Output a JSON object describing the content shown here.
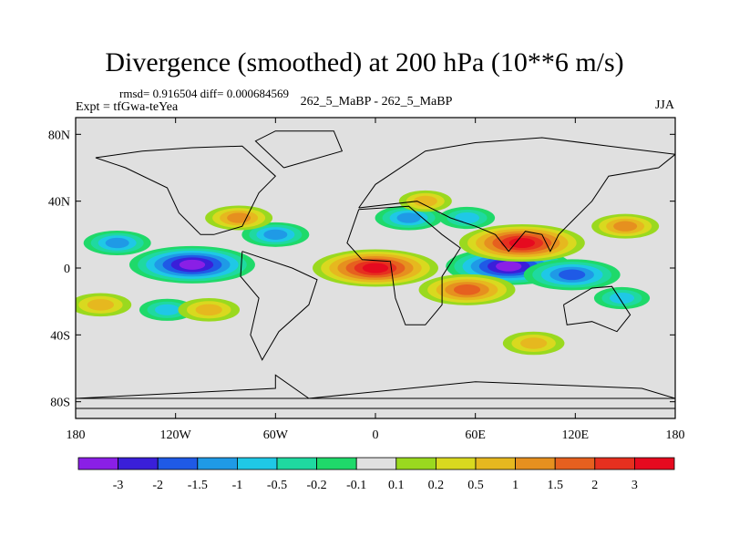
{
  "chart_data": {
    "type": "heatmap",
    "title": "Divergence (smoothed) at 200 hPa (10**6 m/s)",
    "rmsd_label": "rmsd= 0.916504  diff= 0.000684569",
    "experiment_label": "Expt = tfGwa-teYea",
    "comparison_label": "262_5_MaBP - 262_5_MaBP",
    "season_label": "JJA",
    "x_axis": {
      "range": [
        -180,
        180
      ],
      "ticks": [
        -180,
        -120,
        -60,
        0,
        60,
        120,
        180
      ],
      "tick_labels": [
        "180",
        "120W",
        "60W",
        "0",
        "60E",
        "120E",
        "180"
      ]
    },
    "y_axis": {
      "range": [
        -90,
        90
      ],
      "ticks": [
        80,
        40,
        0,
        -40,
        -80
      ],
      "tick_labels": [
        "80N",
        "40N",
        "0",
        "40S",
        "80S"
      ]
    },
    "colorbar": {
      "labels": [
        "-3",
        "-2",
        "-1.5",
        "-1",
        "-0.5",
        "-0.2",
        "-0.1",
        "0.1",
        "0.2",
        "0.5",
        "1",
        "1.5",
        "2",
        "3"
      ],
      "colors": [
        "#8a1fe6",
        "#3a1fd9",
        "#1f5ae6",
        "#1f9ae6",
        "#1fc8e6",
        "#1fd9a0",
        "#1fd96a",
        "#e0e0e0",
        "#9ad91f",
        "#d9d91f",
        "#e6b81f",
        "#e6901f",
        "#e6601f",
        "#e6301f",
        "#e60a1f"
      ]
    },
    "features": [
      {
        "sign": "neg",
        "lon": -110,
        "lat": 2,
        "amp": 3.0
      },
      {
        "sign": "neg",
        "lon": 80,
        "lat": 1,
        "amp": 3.0
      },
      {
        "sign": "neg",
        "lon": 118,
        "lat": -4,
        "amp": 2.0
      },
      {
        "sign": "neg",
        "lon": -60,
        "lat": 20,
        "amp": 1.0
      },
      {
        "sign": "neg",
        "lon": 20,
        "lat": 30,
        "amp": 1.0
      },
      {
        "sign": "neg",
        "lon": -155,
        "lat": 15,
        "amp": 1.0
      },
      {
        "sign": "neg",
        "lon": -125,
        "lat": -25,
        "amp": 0.6
      },
      {
        "sign": "neg",
        "lon": 148,
        "lat": -18,
        "amp": 0.6
      },
      {
        "sign": "neg",
        "lon": 55,
        "lat": 30,
        "amp": 0.6
      },
      {
        "sign": "pos",
        "lon": 0,
        "lat": 0,
        "amp": 3.0
      },
      {
        "sign": "pos",
        "lon": 88,
        "lat": 15,
        "amp": 3.0
      },
      {
        "sign": "pos",
        "lon": 55,
        "lat": -13,
        "amp": 2.0
      },
      {
        "sign": "pos",
        "lon": -82,
        "lat": 30,
        "amp": 1.0
      },
      {
        "sign": "pos",
        "lon": 150,
        "lat": 25,
        "amp": 1.0
      },
      {
        "sign": "pos",
        "lon": -100,
        "lat": -25,
        "amp": 0.8
      },
      {
        "sign": "pos",
        "lon": -165,
        "lat": -22,
        "amp": 0.8
      },
      {
        "sign": "pos",
        "lon": 95,
        "lat": -45,
        "amp": 0.8
      },
      {
        "sign": "pos",
        "lon": 30,
        "lat": 40,
        "amp": 0.5
      }
    ]
  }
}
